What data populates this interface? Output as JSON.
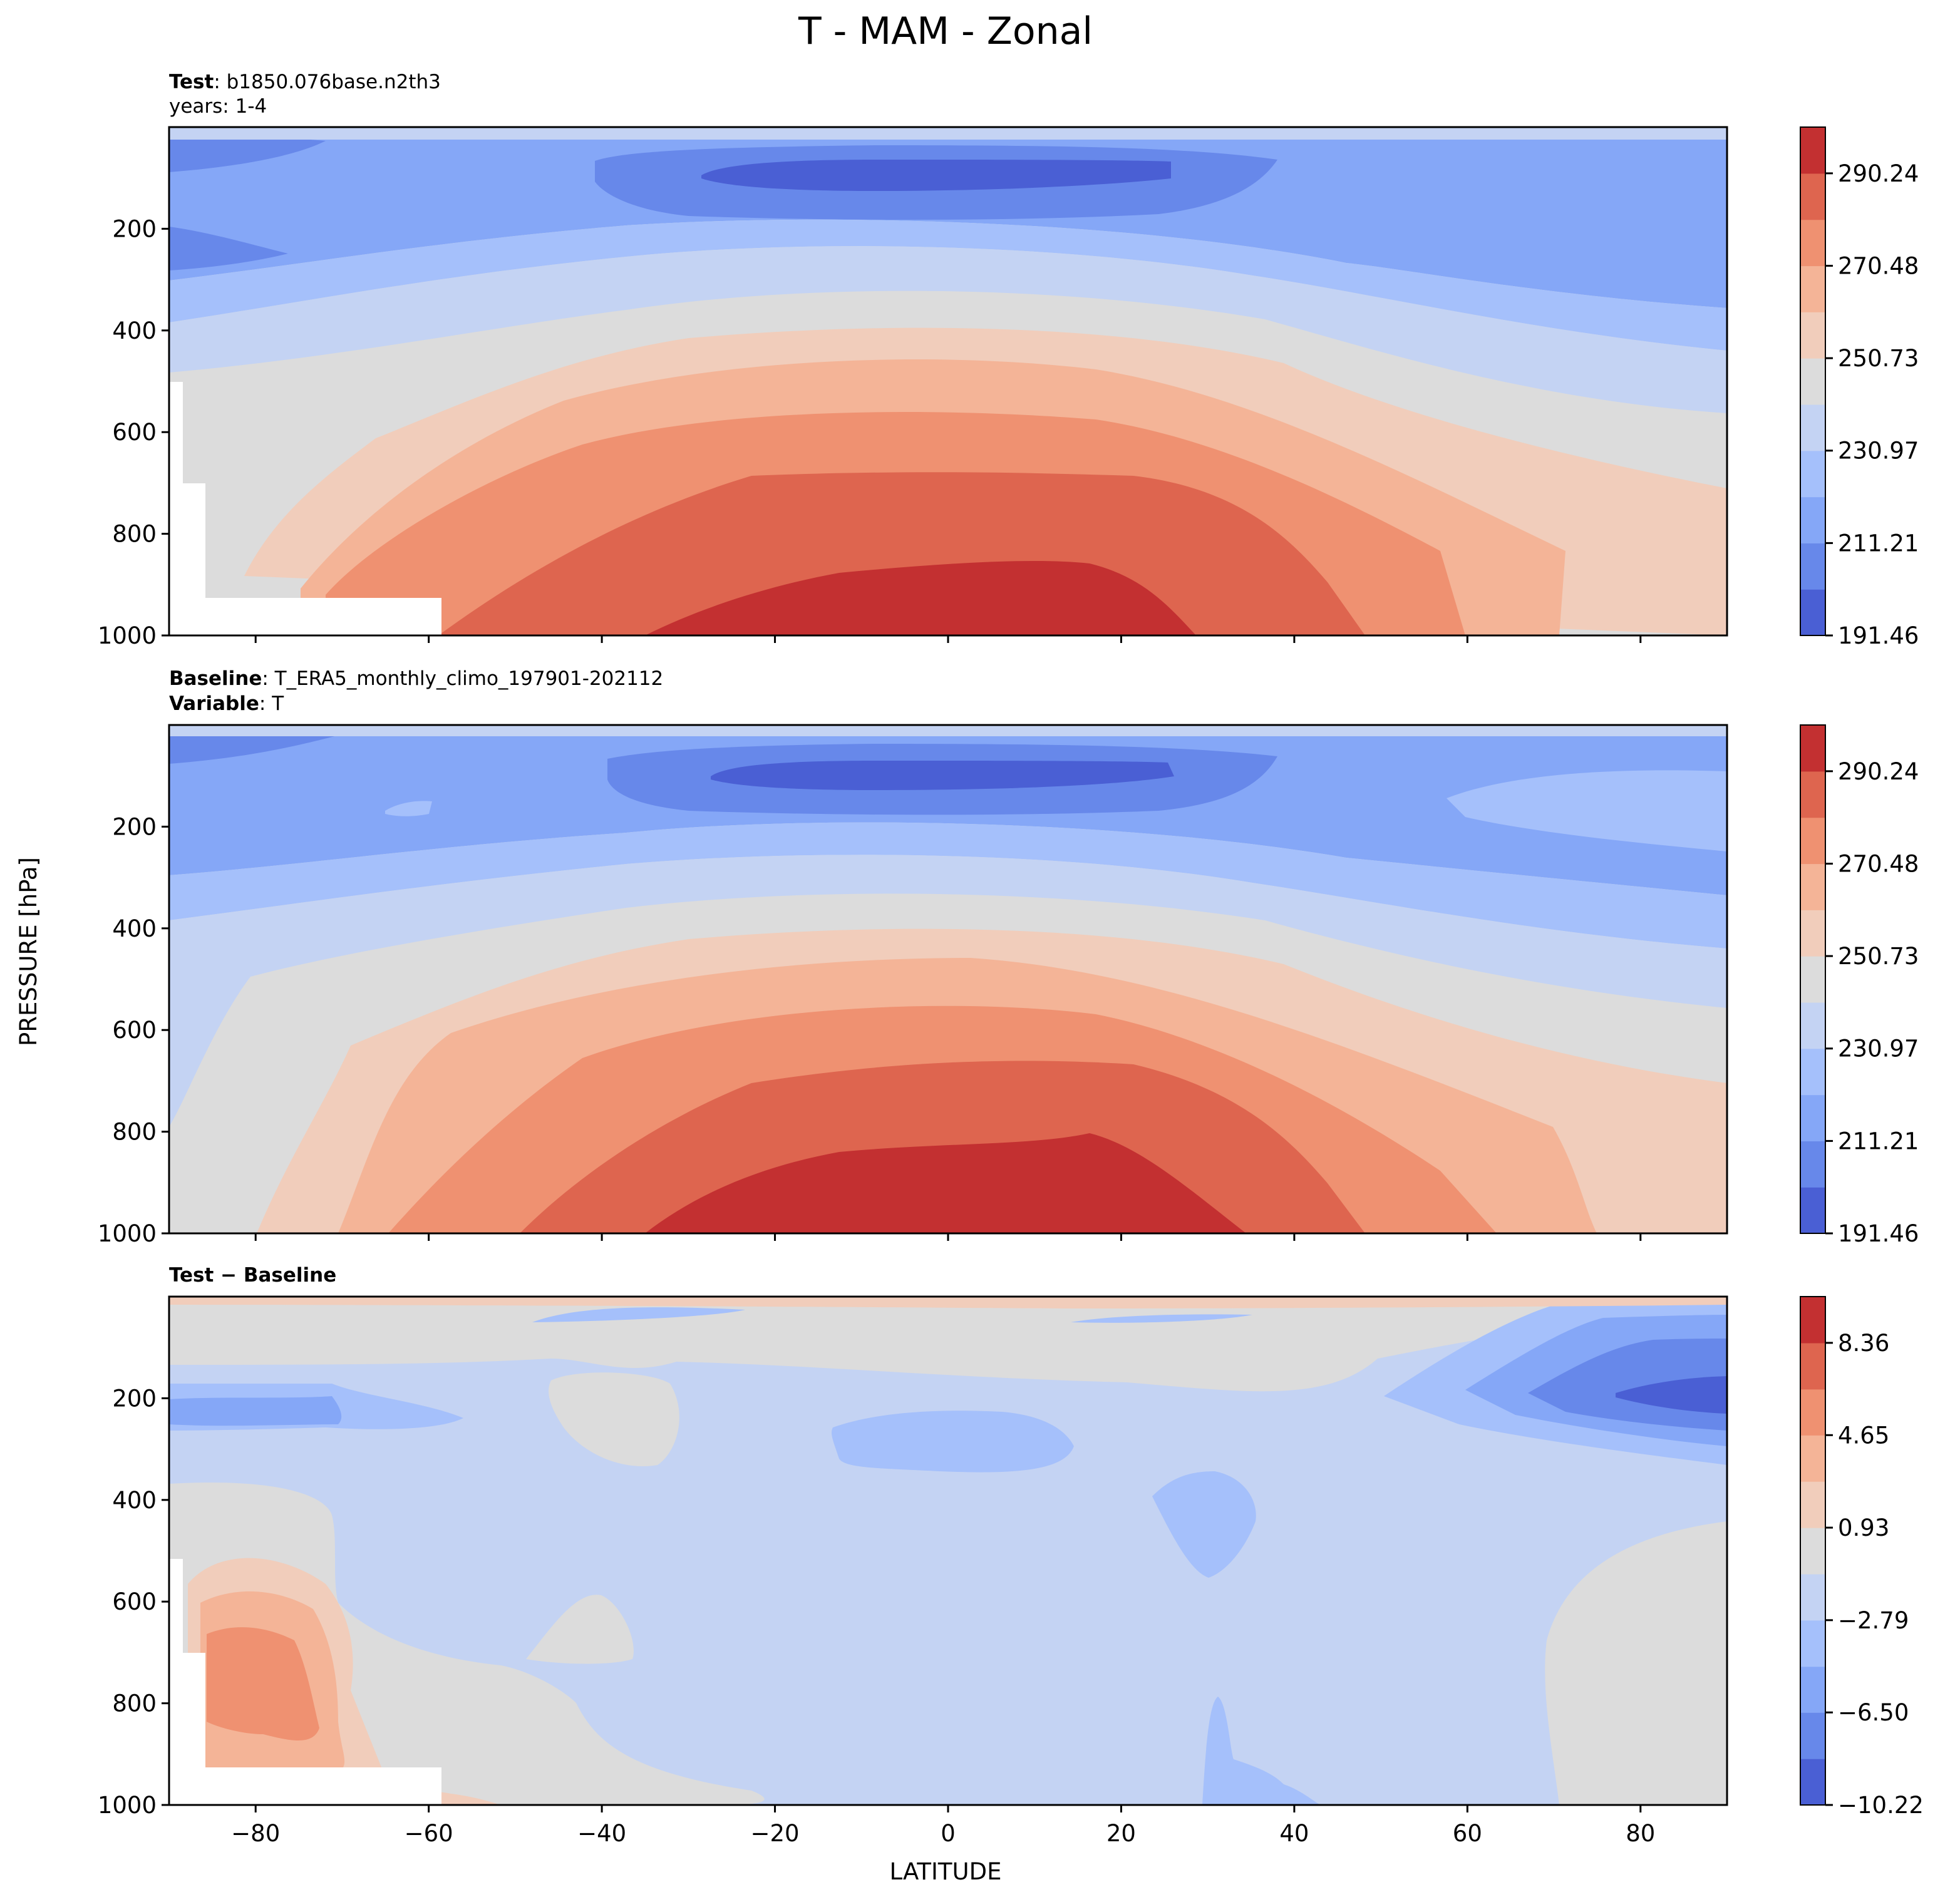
{
  "figure": {
    "title": "T - MAM - Zonal",
    "ylabel": "PRESSURE [hPa]",
    "xlabel": "LATITUDE"
  },
  "panels": [
    {
      "header_lines": [
        {
          "bold": "Test",
          "text": ": b1850.076base.n2th3"
        },
        {
          "bold": "",
          "text": "years: 1-4"
        }
      ]
    },
    {
      "header_lines": [
        {
          "bold": "Baseline",
          "text": ": T_ERA5_monthly_climo_197901-202112"
        },
        {
          "bold": "Variable",
          "text": ": T"
        }
      ]
    },
    {
      "header_lines": [
        {
          "bold": "Test − Baseline",
          "text": ""
        }
      ]
    }
  ],
  "chart_data": [
    {
      "type": "heatmap",
      "name": "test",
      "x_ticks": [
        -80,
        -60,
        -40,
        -20,
        0,
        20,
        40,
        60,
        80
      ],
      "x_tick_labels": [],
      "xlim": [
        -90,
        90
      ],
      "y_ticks": [
        200,
        400,
        600,
        800,
        1000
      ],
      "ylim": [
        1000,
        0
      ],
      "contour_levels": [
        191.46,
        201.34,
        211.21,
        221.09,
        230.97,
        240.85,
        250.73,
        260.61,
        270.48,
        280.36,
        290.24,
        300.12
      ],
      "colorbar_tick_labels": [
        "290.24",
        "270.48",
        "250.73",
        "230.97",
        "211.21",
        "191.46"
      ],
      "colors": [
        "#4a5fd4",
        "#6788ea",
        "#85a7f7",
        "#a5c0fb",
        "#c4d3f3",
        "#dcdcdc",
        "#f1cdbb",
        "#f4b497",
        "#ef9171",
        "#de654f",
        "#c33031"
      ]
    },
    {
      "type": "heatmap",
      "name": "baseline",
      "x_ticks": [
        -80,
        -60,
        -40,
        -20,
        0,
        20,
        40,
        60,
        80
      ],
      "x_tick_labels": [],
      "xlim": [
        -90,
        90
      ],
      "y_ticks": [
        200,
        400,
        600,
        800,
        1000
      ],
      "ylim": [
        1000,
        0
      ],
      "contour_levels": [
        191.46,
        201.34,
        211.21,
        221.09,
        230.97,
        240.85,
        250.73,
        260.61,
        270.48,
        280.36,
        290.24,
        300.12
      ],
      "colorbar_tick_labels": [
        "290.24",
        "270.48",
        "250.73",
        "230.97",
        "211.21",
        "191.46"
      ],
      "colors": [
        "#4a5fd4",
        "#6788ea",
        "#85a7f7",
        "#a5c0fb",
        "#c4d3f3",
        "#dcdcdc",
        "#f1cdbb",
        "#f4b497",
        "#ef9171",
        "#de654f",
        "#c33031"
      ]
    },
    {
      "type": "heatmap",
      "name": "difference",
      "x_ticks": [
        -80,
        -60,
        -40,
        -20,
        0,
        20,
        40,
        60,
        80
      ],
      "x_tick_labels": [
        "−80",
        "−60",
        "−40",
        "−20",
        "0",
        "20",
        "40",
        "60",
        "80"
      ],
      "xlim": [
        -90,
        90
      ],
      "y_ticks": [
        200,
        400,
        600,
        800,
        1000
      ],
      "ylim": [
        1000,
        0
      ],
      "contour_levels": [
        -10.22,
        -8.36,
        -6.5,
        -4.65,
        -2.79,
        -0.93,
        0.93,
        2.79,
        4.65,
        6.5,
        8.36,
        10.22
      ],
      "colorbar_tick_labels": [
        "8.36",
        "4.65",
        "0.93",
        "−2.79",
        "−6.50",
        "−10.22"
      ],
      "colors": [
        "#4a5fd4",
        "#6788ea",
        "#85a7f7",
        "#a5c0fb",
        "#c4d3f3",
        "#dcdcdc",
        "#f1cdbb",
        "#f4b497",
        "#ef9171",
        "#de654f",
        "#c33031"
      ]
    }
  ]
}
